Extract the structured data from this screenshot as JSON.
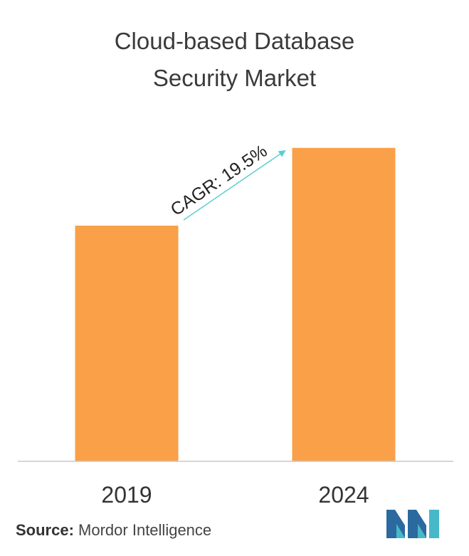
{
  "title_line1": "Cloud-based Database",
  "title_line2": "Security Market",
  "chart_data": {
    "type": "bar",
    "categories": [
      "2019",
      "2024"
    ],
    "values": [
      1.0,
      1.33
    ],
    "cagr_label": "CAGR: 19.5%",
    "bar_color": "#f9a049",
    "arrow_color": "#5bcfd0",
    "axis_color": "#c8c8c8",
    "ylim": [
      0,
      1.45
    ],
    "grid": false
  },
  "source": {
    "label": "Source:",
    "text": "Mordor Intelligence"
  },
  "logo": {
    "icon": "mordor-intelligence-logo",
    "colors": [
      "#2a6a9e",
      "#46b8c8"
    ]
  }
}
